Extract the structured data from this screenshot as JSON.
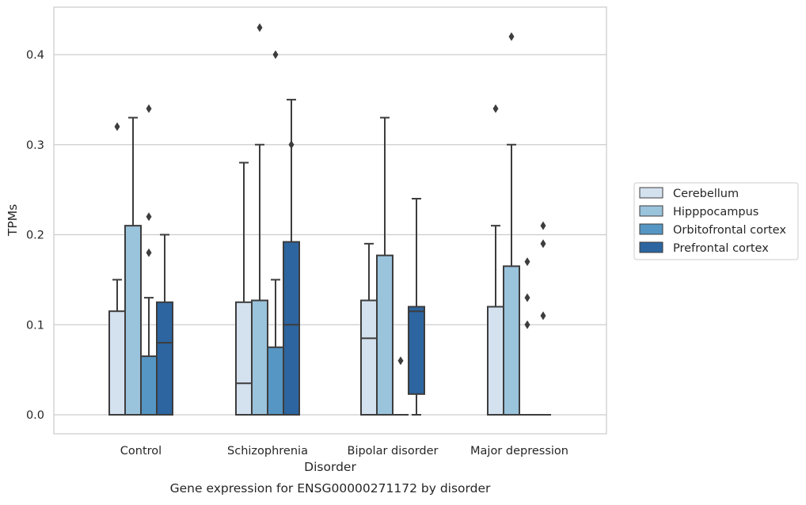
{
  "chart_data": {
    "type": "box",
    "title": "",
    "caption": "Gene expression for ENSG00000271172 by disorder",
    "xlabel": "Disorder",
    "ylabel": "TPMs",
    "ylim": [
      -0.021,
      0.452
    ],
    "yticks": [
      0.0,
      0.1,
      0.2,
      0.3,
      0.4
    ],
    "ytick_labels": [
      "0.0",
      "0.1",
      "0.2",
      "0.3",
      "0.4"
    ],
    "grid": "horizontal",
    "legend_position": "right",
    "categories": [
      "Control",
      "Schizophrenia",
      "Bipolar disorder",
      "Major depression"
    ],
    "series": [
      {
        "name": "Cerebellum",
        "color": "#d4e1ef",
        "boxes": [
          {
            "q1": 0.0,
            "median": 0.0,
            "q3": 0.115,
            "whisker_low": 0.0,
            "whisker_high": 0.15,
            "outliers": [
              0.32
            ]
          },
          {
            "q1": 0.0,
            "median": 0.035,
            "q3": 0.125,
            "whisker_low": 0.0,
            "whisker_high": 0.28,
            "outliers": []
          },
          {
            "q1": 0.0,
            "median": 0.085,
            "q3": 0.127,
            "whisker_low": 0.0,
            "whisker_high": 0.19,
            "outliers": []
          },
          {
            "q1": 0.0,
            "median": 0.0,
            "q3": 0.12,
            "whisker_low": 0.0,
            "whisker_high": 0.21,
            "outliers": [
              0.34
            ]
          }
        ]
      },
      {
        "name": "Hipppocampus",
        "color": "#9ac3dc",
        "boxes": [
          {
            "q1": 0.0,
            "median": 0.0,
            "q3": 0.21,
            "whisker_low": 0.0,
            "whisker_high": 0.33,
            "outliers": []
          },
          {
            "q1": 0.0,
            "median": 0.0,
            "q3": 0.127,
            "whisker_low": 0.0,
            "whisker_high": 0.3,
            "outliers": [
              0.43
            ]
          },
          {
            "q1": 0.0,
            "median": 0.0,
            "q3": 0.177,
            "whisker_low": 0.0,
            "whisker_high": 0.33,
            "outliers": []
          },
          {
            "q1": 0.0,
            "median": 0.0,
            "q3": 0.165,
            "whisker_low": 0.0,
            "whisker_high": 0.3,
            "outliers": [
              0.42
            ]
          }
        ]
      },
      {
        "name": "Orbitofrontal cortex",
        "color": "#5596c4",
        "boxes": [
          {
            "q1": 0.0,
            "median": 0.0,
            "q3": 0.065,
            "whisker_low": 0.0,
            "whisker_high": 0.13,
            "outliers": [
              0.34,
              0.22,
              0.18
            ]
          },
          {
            "q1": 0.0,
            "median": 0.0,
            "q3": 0.075,
            "whisker_low": 0.0,
            "whisker_high": 0.15,
            "outliers": [
              0.4
            ]
          },
          {
            "q1": 0.0,
            "median": 0.0,
            "q3": 0.0,
            "whisker_low": 0.0,
            "whisker_high": 0.0,
            "outliers": [
              0.06
            ]
          },
          {
            "q1": 0.0,
            "median": 0.0,
            "q3": 0.0,
            "whisker_low": 0.0,
            "whisker_high": 0.0,
            "outliers": [
              0.17,
              0.13,
              0.1
            ]
          }
        ]
      },
      {
        "name": "Prefrontal cortex",
        "color": "#2c65a0",
        "boxes": [
          {
            "q1": 0.0,
            "median": 0.08,
            "q3": 0.125,
            "whisker_low": 0.0,
            "whisker_high": 0.2,
            "outliers": []
          },
          {
            "q1": 0.0,
            "median": 0.1,
            "q3": 0.192,
            "whisker_low": 0.0,
            "whisker_high": 0.35,
            "outliers": [
              0.3
            ]
          },
          {
            "q1": 0.023,
            "median": 0.115,
            "q3": 0.12,
            "whisker_low": 0.0,
            "whisker_high": 0.24,
            "outliers": []
          },
          {
            "q1": 0.0,
            "median": 0.0,
            "q3": 0.0,
            "whisker_low": 0.0,
            "whisker_high": 0.0,
            "outliers": [
              0.21,
              0.19,
              0.11
            ]
          }
        ]
      }
    ]
  }
}
